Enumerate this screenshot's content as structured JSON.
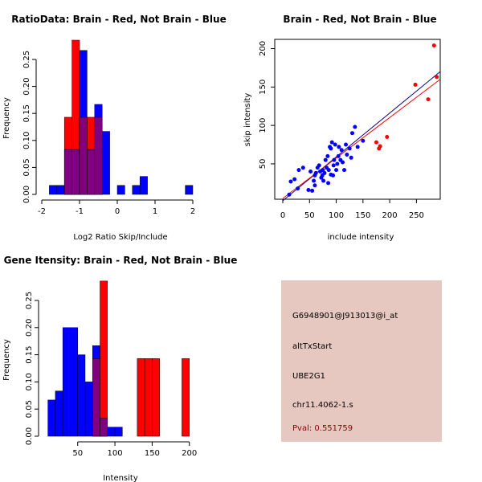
{
  "chart_data": [
    {
      "id": "ratio",
      "type": "bar",
      "title": "RatioData: Brain - Red, Not Brain - Blue",
      "xlabel": "Log2 Ratio Skip/Include",
      "ylabel": "Frequency",
      "xlim": [
        -2,
        2
      ],
      "ylim": [
        0,
        0.25
      ],
      "xticks": [
        -2,
        -1,
        0,
        1,
        2
      ],
      "yticks": [
        0.0,
        0.05,
        0.1,
        0.15,
        0.2,
        0.25
      ],
      "ytick_labels": [
        "0.00",
        "0.05",
        "0.10",
        "0.15",
        "0.20",
        "0.25"
      ],
      "colors": {
        "red": "#ff0000",
        "blue": "#0000ff",
        "overlap": "#800080"
      },
      "series": [
        {
          "name": "Not Brain",
          "color": "blue",
          "bins": [
            [
              -1.8,
              -1.6,
              0.0167
            ],
            [
              -1.6,
              -1.4,
              0.0167
            ],
            [
              -1.4,
              -1.2,
              0.0833
            ],
            [
              -1.2,
              -1.0,
              0.0833
            ],
            [
              -1.0,
              -0.8,
              0.2667
            ],
            [
              -0.8,
              -0.6,
              0.0833
            ],
            [
              -0.6,
              -0.4,
              0.1667
            ],
            [
              -0.4,
              -0.2,
              0.1167
            ],
            [
              0.0,
              0.2,
              0.0167
            ],
            [
              0.4,
              0.6,
              0.0167
            ],
            [
              0.6,
              0.8,
              0.0333
            ],
            [
              1.8,
              2.0,
              0.0167
            ]
          ]
        },
        {
          "name": "Brain",
          "color": "red",
          "bins": [
            [
              -1.4,
              -1.2,
              0.1429
            ],
            [
              -1.2,
              -1.0,
              0.2857
            ],
            [
              -1.0,
              -0.8,
              0.1429
            ],
            [
              -0.8,
              -0.6,
              0.1429
            ],
            [
              -0.6,
              -0.4,
              0.1429
            ]
          ]
        }
      ]
    },
    {
      "id": "scatter",
      "type": "scatter",
      "title": "Brain - Red, Not Brain - Blue",
      "xlabel": "include intensity",
      "ylabel": "skip intensity",
      "xlim": [
        0,
        290
      ],
      "ylim": [
        5,
        212
      ],
      "xticks": [
        0,
        50,
        100,
        150,
        200,
        250
      ],
      "yticks": [
        50,
        100,
        150,
        200
      ],
      "series": [
        {
          "name": "Brain",
          "color": "#ff0000",
          "points": [
            [
              283,
              204
            ],
            [
              248,
              153
            ],
            [
              288,
              163
            ],
            [
              272,
              134
            ],
            [
              195,
              85
            ],
            [
              175,
              78
            ],
            [
              180,
              70
            ],
            [
              182,
              73
            ]
          ]
        },
        {
          "name": "Not Brain",
          "color": "#0000ff",
          "points": [
            [
              12,
              10
            ],
            [
              15,
              27
            ],
            [
              22,
              30
            ],
            [
              28,
              18
            ],
            [
              30,
              42
            ],
            [
              38,
              45
            ],
            [
              48,
              16
            ],
            [
              55,
              15
            ],
            [
              58,
              28
            ],
            [
              60,
              35
            ],
            [
              62,
              38
            ],
            [
              65,
              45
            ],
            [
              68,
              48
            ],
            [
              70,
              40
            ],
            [
              72,
              32
            ],
            [
              74,
              35
            ],
            [
              75,
              42
            ],
            [
              76,
              28
            ],
            [
              78,
              38
            ],
            [
              80,
              55
            ],
            [
              82,
              45
            ],
            [
              84,
              60
            ],
            [
              86,
              42
            ],
            [
              88,
              72
            ],
            [
              90,
              36
            ],
            [
              92,
              78
            ],
            [
              94,
              35
            ],
            [
              95,
              48
            ],
            [
              96,
              55
            ],
            [
              98,
              75
            ],
            [
              100,
              42
            ],
            [
              102,
              50
            ],
            [
              104,
              60
            ],
            [
              105,
              72
            ],
            [
              108,
              55
            ],
            [
              110,
              68
            ],
            [
              112,
              52
            ],
            [
              115,
              42
            ],
            [
              118,
              75
            ],
            [
              120,
              62
            ],
            [
              125,
              70
            ],
            [
              128,
              58
            ],
            [
              130,
              90
            ],
            [
              135,
              98
            ],
            [
              140,
              72
            ],
            [
              150,
              80
            ],
            [
              90,
              70
            ],
            [
              85,
              25
            ],
            [
              52,
              40
            ],
            [
              60,
              22
            ]
          ]
        }
      ],
      "fit_lines": [
        {
          "name": "Not Brain fit",
          "color": "#00008b",
          "from": [
            0,
            2
          ],
          "to": [
            295,
            170
          ]
        },
        {
          "name": "Brain fit",
          "color": "#ff0000",
          "from": [
            0,
            5
          ],
          "to": [
            295,
            160
          ]
        }
      ]
    },
    {
      "id": "gene",
      "type": "bar",
      "title": "Gene Itensity: Brain - Red, Not Brain - Blue",
      "xlabel": "Intensity",
      "ylabel": "Frequency",
      "xlim": [
        5,
        210
      ],
      "ylim": [
        0,
        0.25
      ],
      "xticks": [
        50,
        100,
        150,
        200
      ],
      "yticks": [
        0.0,
        0.05,
        0.1,
        0.15,
        0.2,
        0.25
      ],
      "ytick_labels": [
        "0.00",
        "0.05",
        "0.10",
        "0.15",
        "0.20",
        "0.25"
      ],
      "colors": {
        "red": "#ff0000",
        "blue": "#0000ff",
        "overlap": "#800080"
      },
      "series": [
        {
          "name": "Not Brain",
          "color": "blue",
          "bins": [
            [
              10,
              20,
              0.0667
            ],
            [
              20,
              30,
              0.0833
            ],
            [
              30,
              40,
              0.2
            ],
            [
              40,
              50,
              0.2
            ],
            [
              50,
              60,
              0.15
            ],
            [
              60,
              70,
              0.1
            ],
            [
              70,
              80,
              0.1667
            ],
            [
              80,
              90,
              0.0333
            ],
            [
              90,
              100,
              0.0167
            ],
            [
              100,
              110,
              0.0167
            ]
          ]
        },
        {
          "name": "Brain",
          "color": "red",
          "bins": [
            [
              70,
              80,
              0.1429
            ],
            [
              80,
              90,
              0.2857
            ],
            [
              130,
              140,
              0.1429
            ],
            [
              140,
              150,
              0.1429
            ],
            [
              150,
              160,
              0.1429
            ],
            [
              190,
              200,
              0.1429
            ]
          ]
        }
      ]
    }
  ],
  "info": {
    "probe": "G6948901@J913013@i_at",
    "event": "altTxStart",
    "gene": "UBE2G1",
    "location": "chr11.4062-1.s",
    "pval": "Pval: 0.551759"
  }
}
